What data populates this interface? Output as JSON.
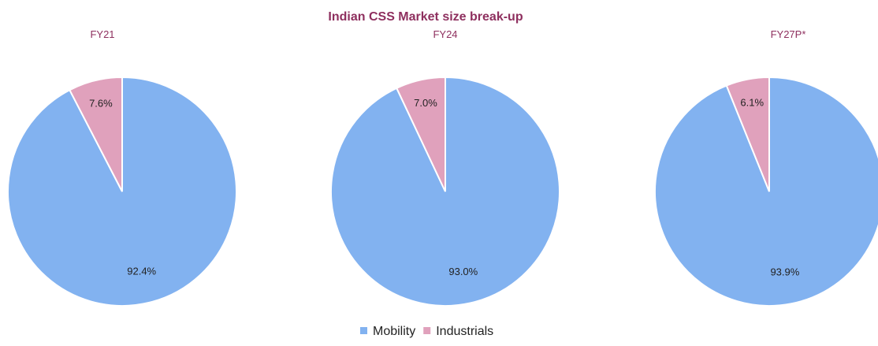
{
  "chart_data": {
    "type": "pie",
    "title": "Indian CSS Market size break-up",
    "legend": {
      "placement": "bottom-center",
      "entries": [
        {
          "name": "Mobility",
          "color": "#82b2f0"
        },
        {
          "name": "Industrials",
          "color": "#e0a1bc"
        }
      ]
    },
    "charts": [
      {
        "subtitle": "FY21",
        "slices": [
          {
            "name": "Mobility",
            "value": 92.4,
            "label": "92.4%"
          },
          {
            "name": "Industrials",
            "value": 7.6,
            "label": "7.6%"
          }
        ]
      },
      {
        "subtitle": "FY24",
        "slices": [
          {
            "name": "Mobility",
            "value": 93.0,
            "label": "93.0%"
          },
          {
            "name": "Industrials",
            "value": 7.0,
            "label": "7.0%"
          }
        ]
      },
      {
        "subtitle": "FY27P*",
        "slices": [
          {
            "name": "Mobility",
            "value": 93.9,
            "label": "93.9%"
          },
          {
            "name": "Industrials",
            "value": 6.1,
            "label": "6.1%"
          }
        ]
      }
    ]
  },
  "colors": {
    "title": "#8e2f5e",
    "mobility": "#82b2f0",
    "industrials": "#e0a1bc",
    "slice_border": "#ffffff"
  }
}
